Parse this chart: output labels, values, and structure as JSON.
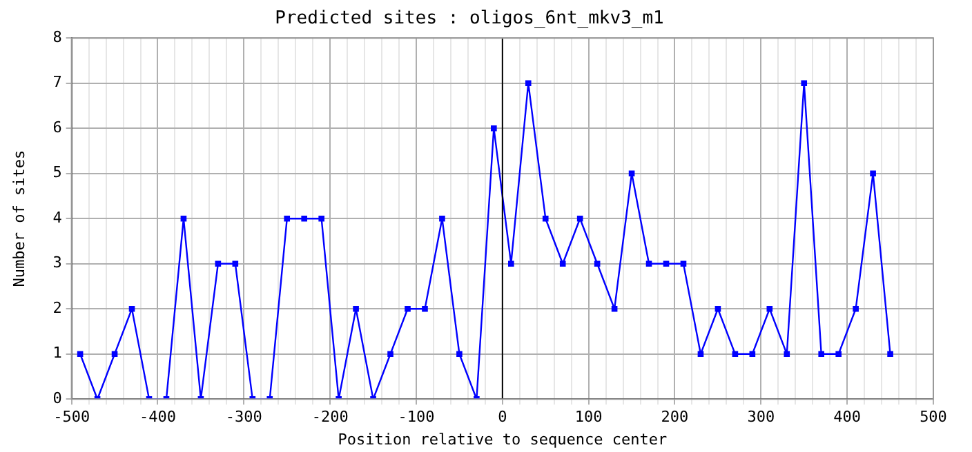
{
  "chart_data": {
    "type": "line",
    "title": "Predicted sites : oligos_6nt_mkv3_m1",
    "xlabel": "Position relative to sequence center",
    "ylabel": "Number of sites",
    "x": [
      -490,
      -470,
      -450,
      -430,
      -410,
      -390,
      -370,
      -350,
      -330,
      -310,
      -290,
      -270,
      -250,
      -230,
      -210,
      -190,
      -170,
      -150,
      -130,
      -110,
      -90,
      -70,
      -50,
      -30,
      -10,
      10,
      30,
      50,
      70,
      90,
      110,
      130,
      150,
      170,
      190,
      210,
      230,
      250,
      270,
      290,
      310,
      330,
      350,
      370,
      390,
      410,
      430,
      450
    ],
    "series": [
      {
        "color": "#0000ff",
        "values": [
          1,
          0,
          1,
          2,
          0,
          0,
          4,
          0,
          3,
          3,
          0,
          0,
          4,
          4,
          4,
          0,
          2,
          0,
          1,
          2,
          2,
          4,
          1,
          0,
          6,
          3,
          7,
          4,
          3,
          4,
          3,
          2,
          5,
          3,
          3,
          3,
          1,
          2,
          1,
          1,
          2,
          1,
          7,
          1,
          1,
          2,
          5,
          1
        ]
      }
    ],
    "xlim": [
      -500,
      500
    ],
    "xticks": [
      -500,
      {
        "value": -480,
        "label": null
      },
      {
        "value": -460,
        "label": null
      },
      {
        "value": -440,
        "label": null
      },
      {
        "value": -420,
        "label": null
      },
      -400,
      {
        "value": -380,
        "label": null
      },
      {
        "value": -360,
        "label": null
      },
      {
        "value": -340,
        "label": null
      },
      {
        "value": -320,
        "label": null
      },
      -300,
      {
        "value": -280,
        "label": null
      },
      {
        "value": -260,
        "label": null
      },
      {
        "value": -240,
        "label": null
      },
      {
        "value": -220,
        "label": null
      },
      -200,
      {
        "value": -180,
        "label": null
      },
      {
        "value": -160,
        "label": null
      },
      {
        "value": -140,
        "label": null
      },
      {
        "value": -120,
        "label": null
      },
      -100,
      {
        "value": -80,
        "label": null
      },
      {
        "value": -60,
        "label": null
      },
      {
        "value": -40,
        "label": null
      },
      {
        "value": -20,
        "label": null
      },
      0,
      {
        "value": 20,
        "label": null
      },
      {
        "value": 40,
        "label": null
      },
      {
        "value": 60,
        "label": null
      },
      {
        "value": 80,
        "label": null
      },
      100,
      {
        "value": 120,
        "label": null
      },
      {
        "value": 140,
        "label": null
      },
      {
        "value": 160,
        "label": null
      },
      {
        "value": 180,
        "label": null
      },
      200,
      {
        "value": 220,
        "label": null
      },
      {
        "value": 240,
        "label": null
      },
      {
        "value": 260,
        "label": null
      },
      {
        "value": 280,
        "label": null
      },
      300,
      {
        "value": 320,
        "label": null
      },
      {
        "value": 340,
        "label": null
      },
      {
        "value": 360,
        "label": null
      },
      {
        "value": 380,
        "label": null
      },
      400,
      {
        "value": 420,
        "label": null
      },
      {
        "value": 440,
        "label": null
      },
      {
        "value": 460,
        "label": null
      },
      {
        "value": 480,
        "label": null
      },
      500
    ],
    "ylim": [
      0,
      8
    ],
    "yticks": [
      0,
      1,
      2,
      3,
      4,
      5,
      6,
      7,
      8
    ],
    "ref_lines": [
      {
        "axis": "x",
        "value": 0,
        "color": "#000000"
      }
    ],
    "grid": true,
    "legend": false,
    "marker": "square",
    "line_style": "solid"
  }
}
